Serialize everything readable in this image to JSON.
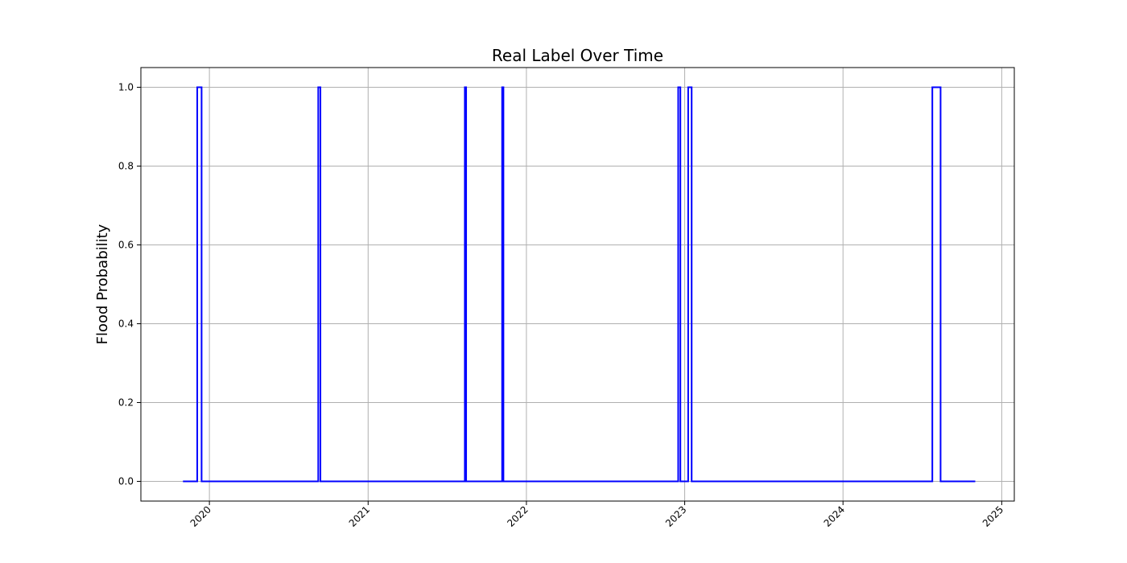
{
  "chart_data": {
    "type": "line",
    "title": "Real Label Over Time",
    "xlabel": "",
    "ylabel": "Flood Probability",
    "x_axis": "date",
    "xlim": [
      "2019-07-27",
      "2025-01-30"
    ],
    "ylim": [
      -0.05,
      1.05
    ],
    "x_ticks": [
      "2020-01-01",
      "2021-01-01",
      "2022-01-01",
      "2023-01-01",
      "2024-01-01",
      "2025-01-01"
    ],
    "x_tick_labels": [
      "2020",
      "2021",
      "2022",
      "2023",
      "2024",
      "2025"
    ],
    "y_ticks": [
      0.0,
      0.2,
      0.4,
      0.6,
      0.8,
      1.0
    ],
    "y_tick_labels": [
      "0.0",
      "0.2",
      "0.4",
      "0.6",
      "0.8",
      "1.0"
    ],
    "grid": true,
    "line_color": "#0000ff",
    "series": [
      {
        "x": [
          "2019-11-01",
          "2019-12-04",
          "2019-12-04",
          "2019-12-14",
          "2019-12-14",
          "2020-09-08",
          "2020-09-08",
          "2020-09-13",
          "2020-09-13",
          "2021-08-12",
          "2021-08-12",
          "2021-08-15",
          "2021-08-15",
          "2021-11-06",
          "2021-11-06",
          "2021-11-09",
          "2021-11-09",
          "2022-12-17",
          "2022-12-17",
          "2022-12-22",
          "2022-12-22",
          "2023-01-09",
          "2023-01-09",
          "2023-01-17",
          "2023-01-17",
          "2024-07-25",
          "2024-07-25",
          "2024-08-13",
          "2024-08-13",
          "2024-11-01"
        ],
        "y": [
          0,
          0,
          1,
          1,
          0,
          0,
          1,
          1,
          0,
          0,
          1,
          1,
          0,
          0,
          1,
          1,
          0,
          0,
          1,
          1,
          0,
          0,
          1,
          1,
          0,
          0,
          1,
          1,
          0,
          0
        ]
      }
    ]
  }
}
